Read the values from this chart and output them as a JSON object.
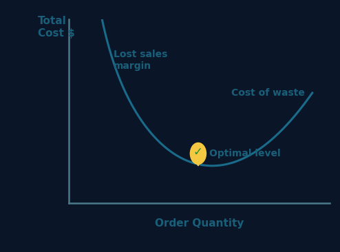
{
  "background_color": "#0a1628",
  "curve_color": "#1a6b8a",
  "curve_linewidth": 2.2,
  "axis_color": "#4a7a8a",
  "text_color": "#1a5f7a",
  "ylabel": "Total\nCost $",
  "xlabel": "Order Quantity",
  "label_lost_sales": "Lost sales\nmargin",
  "label_cost_waste": "Cost of waste",
  "label_optimal": "Optimal level",
  "optimal_marker_color": "#f5c842",
  "optimal_check_color": "#2d8a2d",
  "ylabel_fontsize": 11,
  "xlabel_fontsize": 11,
  "annotation_fontsize": 10,
  "x_opt": 5.2,
  "a": 4.5,
  "b": 0.12,
  "x_start": 0.8,
  "x_end": 9.8,
  "xlim": [
    0,
    10.5
  ],
  "ylim": [
    0,
    5.5
  ]
}
